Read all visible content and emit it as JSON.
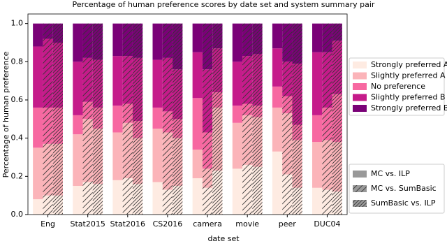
{
  "chart_data": {
    "type": "stacked-grouped-bar",
    "title": "Percentage of human preference scores by date set and system summary pair",
    "x_label": "date set",
    "y_label": "Percentage of human preference",
    "categories": [
      "Eng",
      "Stat2015",
      "Stat2016",
      "CS2016",
      "camera",
      "movie",
      "peer",
      "DUC04"
    ],
    "groups": [
      {
        "name": "MC vs. ILP",
        "hatch": "none"
      },
      {
        "name": "MC vs. SumBasic",
        "hatch": "/"
      },
      {
        "name": "SumBasic vs. ILP",
        "hatch": "//"
      }
    ],
    "series": [
      {
        "name": "Strongly preferred A",
        "color": "#feebe2",
        "values": [
          [
            0.08,
            0.1,
            0.1
          ],
          [
            0.15,
            0.17,
            0.16
          ],
          [
            0.18,
            0.19,
            0.16
          ],
          [
            0.17,
            0.13,
            0.15
          ],
          [
            0.19,
            0.14,
            0.23
          ],
          [
            0.24,
            0.26,
            0.25
          ],
          [
            0.33,
            0.21,
            0.14
          ],
          [
            0.14,
            0.13,
            0.12
          ]
        ]
      },
      {
        "name": "Slightly preferred A",
        "color": "#fbb4b9",
        "values": [
          [
            0.27,
            0.27,
            0.27
          ],
          [
            0.27,
            0.33,
            0.29
          ],
          [
            0.25,
            0.29,
            0.24
          ],
          [
            0.28,
            0.3,
            0.25
          ],
          [
            0.15,
            0.1,
            0.33
          ],
          [
            0.24,
            0.26,
            0.26
          ],
          [
            0.23,
            0.32,
            0.25
          ],
          [
            0.24,
            0.26,
            0.26
          ]
        ]
      },
      {
        "name": "No preference",
        "color": "#f768a1",
        "values": [
          [
            0.21,
            0.19,
            0.19
          ],
          [
            0.1,
            0.09,
            0.11
          ],
          [
            0.14,
            0.1,
            0.09
          ],
          [
            0.11,
            0.11,
            0.1
          ],
          [
            0.27,
            0.19,
            0.08
          ],
          [
            0.09,
            0.06,
            0.06
          ],
          [
            0.11,
            0.09,
            0.08
          ],
          [
            0.14,
            0.17,
            0.25
          ]
        ]
      },
      {
        "name": "Slightly preferred B",
        "color": "#c51b8a",
        "values": [
          [
            0.32,
            0.36,
            0.34
          ],
          [
            0.28,
            0.23,
            0.25
          ],
          [
            0.26,
            0.25,
            0.33
          ],
          [
            0.25,
            0.28,
            0.26
          ],
          [
            0.24,
            0.33,
            0.23
          ],
          [
            0.23,
            0.25,
            0.27
          ],
          [
            0.2,
            0.18,
            0.32
          ],
          [
            0.33,
            0.29,
            0.28
          ]
        ]
      },
      {
        "name": "Strongly preferred B",
        "color": "#7a0177",
        "values": [
          [
            0.12,
            0.08,
            0.1
          ],
          [
            0.2,
            0.18,
            0.19
          ],
          [
            0.17,
            0.17,
            0.18
          ],
          [
            0.19,
            0.18,
            0.24
          ],
          [
            0.15,
            0.24,
            0.13
          ],
          [
            0.2,
            0.17,
            0.16
          ],
          [
            0.13,
            0.2,
            0.21
          ],
          [
            0.15,
            0.15,
            0.09
          ]
        ]
      }
    ],
    "ylim": [
      0,
      1.05
    ],
    "yticks": [
      {
        "value": 0,
        "label": "0.0"
      },
      0.2,
      0.4,
      0.6,
      0.8,
      {
        "value": 1,
        "label": "1.0"
      }
    ]
  }
}
